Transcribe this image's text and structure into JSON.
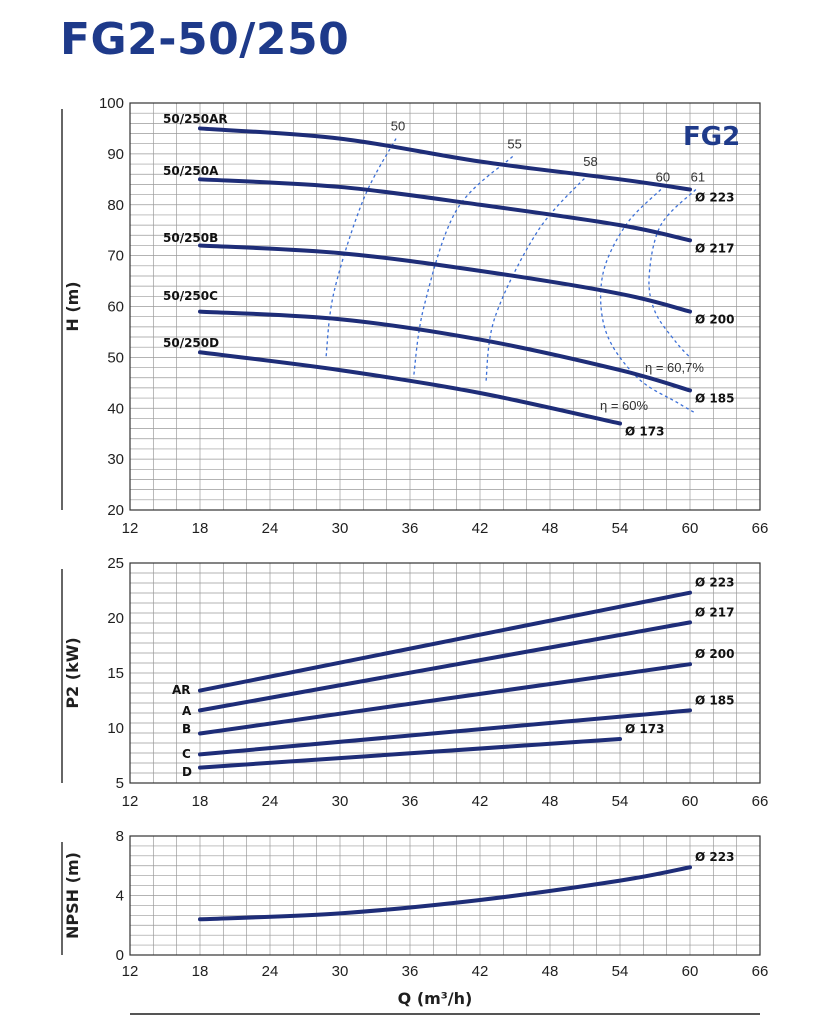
{
  "title": "FG2-50/250",
  "colors": {
    "curve": "#1e2d78",
    "efficiency": "#3b6fd8",
    "title": "#1e3a8a"
  },
  "x_axis": {
    "label": "Q (m³/h)",
    "range": [
      12,
      66
    ],
    "ticks": [
      12,
      18,
      24,
      30,
      36,
      42,
      48,
      54,
      60,
      66
    ]
  },
  "chart_data": [
    {
      "type": "line",
      "panel": "head",
      "ylabel": "H (m)",
      "xlim": [
        12,
        66
      ],
      "ylim": [
        20,
        100
      ],
      "yticks": [
        20,
        30,
        40,
        50,
        60,
        70,
        80,
        90,
        100
      ],
      "grid": true,
      "badge": "FG2",
      "series": [
        {
          "name": "50/250AR",
          "diameter": "Ø 223",
          "x": [
            18,
            30,
            42,
            54,
            60
          ],
          "y": [
            95,
            93,
            88.5,
            85,
            83
          ]
        },
        {
          "name": "50/250A",
          "diameter": "Ø 217",
          "x": [
            18,
            30,
            42,
            54,
            60
          ],
          "y": [
            85,
            83.5,
            80,
            76,
            73
          ]
        },
        {
          "name": "50/250B",
          "diameter": "Ø 200",
          "x": [
            18,
            30,
            42,
            54,
            60
          ],
          "y": [
            72,
            70.5,
            67,
            62.5,
            59
          ]
        },
        {
          "name": "50/250C",
          "diameter": "Ø 185",
          "x": [
            18,
            30,
            42,
            54,
            60
          ],
          "y": [
            59,
            57.5,
            53.5,
            47.5,
            43.5
          ]
        },
        {
          "name": "50/250D",
          "diameter": "Ø 173",
          "x": [
            18,
            30,
            42,
            54
          ],
          "y": [
            51,
            47.5,
            43,
            37
          ]
        }
      ],
      "efficiency_curves": [
        {
          "label": "50",
          "x": [
            34.8,
            32,
            29.5,
            28.8
          ],
          "y": [
            93,
            81,
            63,
            50
          ]
        },
        {
          "label": "55",
          "x": [
            44.8,
            40,
            37.2,
            36.3
          ],
          "y": [
            89.5,
            79,
            60,
            46
          ]
        },
        {
          "label": "58",
          "x": [
            51.3,
            47,
            43.3,
            42.5
          ],
          "y": [
            86,
            75,
            58,
            45
          ]
        },
        {
          "label": "60",
          "x": [
            57.5,
            54.5,
            52.5,
            52.8,
            55.5,
            59,
            60.5
          ],
          "y": [
            83,
            76,
            66,
            55,
            46,
            41,
            39
          ]
        },
        {
          "label": "61",
          "x": [
            60.5,
            57.5,
            56.5,
            57,
            58.8,
            60
          ],
          "y": [
            83,
            76,
            66,
            59,
            53,
            50
          ]
        }
      ],
      "annotations": [
        "η = 60%",
        "η = 60,7%"
      ]
    },
    {
      "type": "line",
      "panel": "power",
      "ylabel": "P2 (kW)",
      "xlim": [
        12,
        66
      ],
      "ylim": [
        5,
        25
      ],
      "yticks": [
        5,
        10,
        15,
        20,
        25
      ],
      "grid": true,
      "series": [
        {
          "name": "AR",
          "diameter": "Ø 223",
          "x": [
            18,
            60
          ],
          "y": [
            13.4,
            22.3
          ]
        },
        {
          "name": "A",
          "diameter": "Ø 217",
          "x": [
            18,
            60
          ],
          "y": [
            11.6,
            19.6
          ]
        },
        {
          "name": "B",
          "diameter": "Ø 200",
          "x": [
            18,
            60
          ],
          "y": [
            9.5,
            15.8
          ]
        },
        {
          "name": "C",
          "diameter": "Ø 185",
          "x": [
            18,
            60
          ],
          "y": [
            7.6,
            11.6
          ]
        },
        {
          "name": "D",
          "diameter": "Ø 173",
          "x": [
            18,
            54
          ],
          "y": [
            6.4,
            9.0
          ]
        }
      ]
    },
    {
      "type": "line",
      "panel": "npsh",
      "ylabel": "NPSH (m)",
      "xlim": [
        12,
        66
      ],
      "ylim": [
        0,
        8
      ],
      "yticks": [
        0,
        4,
        8
      ],
      "grid": true,
      "series": [
        {
          "name": "",
          "diameter": "Ø 223",
          "x": [
            18,
            30,
            42,
            54,
            60
          ],
          "y": [
            2.4,
            2.8,
            3.7,
            5.0,
            5.9
          ]
        }
      ]
    }
  ]
}
